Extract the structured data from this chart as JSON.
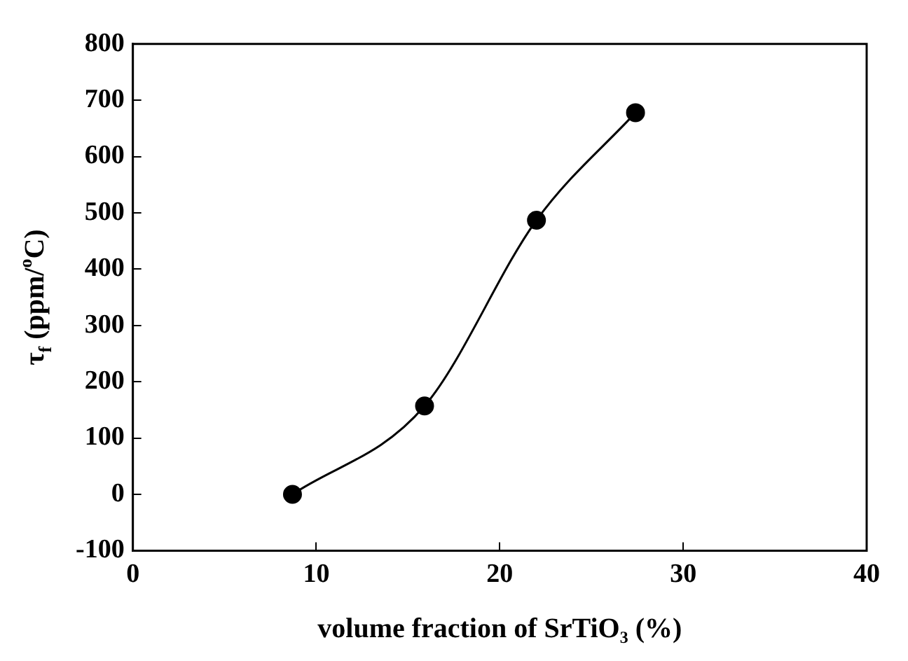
{
  "chart_data": {
    "type": "line",
    "xlabel": "volume fraction of SrTiO₃ (%)",
    "ylabel": "τ$_{f}$ (ppm/$^{o}$C)",
    "x": [
      8.7,
      15.9,
      22,
      27.4
    ],
    "series": [
      {
        "color": "#000000",
        "values": [
          0,
          157,
          487,
          678
        ]
      }
    ],
    "xlim": [
      0,
      40
    ],
    "xticks": [
      0,
      10,
      20,
      30,
      40
    ],
    "ylim": [
      -100,
      800
    ],
    "yticks": [
      -100,
      0,
      100,
      200,
      300,
      400,
      500,
      600,
      700,
      800
    ],
    "grid": false,
    "legend": false,
    "marker": "circle",
    "line_style": "solid"
  }
}
